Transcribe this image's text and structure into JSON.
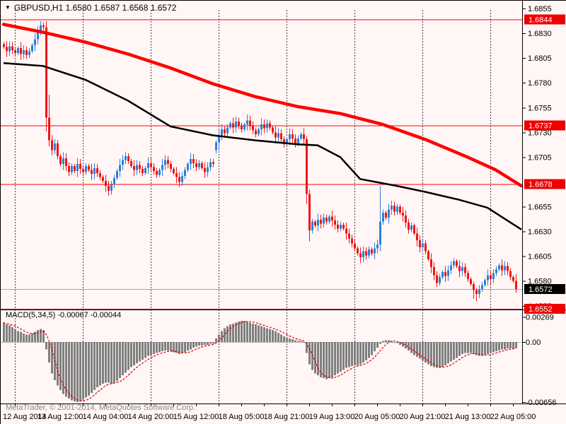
{
  "window": {
    "title": "GBPUSD,H1 1.6580 1.6587 1.6568 1.6572",
    "collapse_icon": "▼"
  },
  "footer": {
    "watermark": "MetaTrader, © 2001-2014, MetaQuotes Software Corp."
  },
  "chart_data": {
    "type": "candlestick",
    "symbol": "GBPUSD",
    "timeframe": "H1",
    "current_bar": {
      "open": "1.6580",
      "high": "1.6587",
      "low": "1.6568",
      "close": "1.6572"
    },
    "x_labels": [
      "12 Aug 2014",
      "13 Aug 12:00",
      "14 Aug 04:00",
      "14 Aug 20:00",
      "15 Aug 12:00",
      "18 Aug 05:00",
      "18 Aug 21:00",
      "19 Aug 13:00",
      "20 Aug 05:00",
      "20 Aug 21:00",
      "21 Aug 13:00",
      "22 Aug 05:00"
    ],
    "price_ticks": [
      "1.6855",
      "1.6830",
      "1.6805",
      "1.6780",
      "1.6755",
      "1.6730",
      "1.6705",
      "1.6655",
      "1.6630",
      "1.6605",
      "1.6580",
      "1.6555"
    ],
    "price_axis_range": {
      "top": 1.6858,
      "bottom": 1.6549
    },
    "grid": "vertical-dashed",
    "hlines": [
      {
        "price": 1.6844,
        "color": "#FF0000",
        "badge_bg": "#EE0000",
        "label": "1.6844"
      },
      {
        "price": 1.6737,
        "color": "#FF0000",
        "badge_bg": "#EE0000",
        "label": "1.6737"
      },
      {
        "price": 1.6678,
        "color": "#FF0000",
        "badge_bg": "#EE0000",
        "label": "1.6678"
      },
      {
        "price": 1.6572,
        "color": "#A8A8A8",
        "badge_bg": "#000000",
        "label": "1.6572"
      },
      {
        "price": 1.6552,
        "color": "#FF0000",
        "badge_bg": "#EE0000",
        "label": "1.6552"
      }
    ],
    "candles": {
      "default_wick": 0.0004,
      "closes": [
        1.6816,
        1.6812,
        1.6817,
        1.6813,
        1.681,
        1.6815,
        1.6809,
        1.6813,
        1.6808,
        1.6812,
        1.6818,
        1.6824,
        1.6832,
        1.6838,
        1.6836,
        1.6745,
        1.6722,
        1.6712,
        1.6719,
        1.6706,
        1.6698,
        1.6704,
        1.6696,
        1.669,
        1.6696,
        1.6691,
        1.6698,
        1.6693,
        1.669,
        1.6696,
        1.6692,
        1.6688,
        1.6694,
        1.6689,
        1.6685,
        1.6681,
        1.6676,
        1.6671,
        1.6677,
        1.6684,
        1.6691,
        1.6697,
        1.6702,
        1.6706,
        1.6701,
        1.6696,
        1.6692,
        1.6697,
        1.6693,
        1.6689,
        1.6694,
        1.6699,
        1.6695,
        1.6691,
        1.6687,
        1.6692,
        1.6697,
        1.6702,
        1.6698,
        1.6693,
        1.6689,
        1.6685,
        1.668,
        1.6686,
        1.6692,
        1.6698,
        1.6703,
        1.6699,
        1.6695,
        1.6699,
        1.6694,
        1.669,
        1.6695,
        1.67,
        1.6698,
        1.672,
        1.6727,
        1.6733,
        1.6729,
        1.6735,
        1.6739,
        1.6735,
        1.6741,
        1.6737,
        1.6733,
        1.6738,
        1.6742,
        1.6737,
        1.6732,
        1.6728,
        1.6733,
        1.6738,
        1.6734,
        1.6739,
        1.6735,
        1.673,
        1.6725,
        1.6729,
        1.6723,
        1.6718,
        1.6723,
        1.6728,
        1.6724,
        1.6719,
        1.6724,
        1.6728,
        1.6723,
        1.6668,
        1.6631,
        1.664,
        1.6636,
        1.6642,
        1.6638,
        1.6644,
        1.664,
        1.6645,
        1.6641,
        1.6637,
        1.6633,
        1.6637,
        1.6633,
        1.6628,
        1.6623,
        1.6618,
        1.6613,
        1.6608,
        1.6604,
        1.661,
        1.6606,
        1.6612,
        1.6608,
        1.6613,
        1.6617,
        1.664,
        1.6649,
        1.6644,
        1.6652,
        1.6656,
        1.665,
        1.6655,
        1.6649,
        1.6646,
        1.6639,
        1.6632,
        1.6636,
        1.6628,
        1.6621,
        1.6614,
        1.6618,
        1.661,
        1.6602,
        1.6594,
        1.6586,
        1.6578,
        1.6584,
        1.6589,
        1.6585,
        1.6591,
        1.6596,
        1.66,
        1.6595,
        1.659,
        1.6594,
        1.6588,
        1.6582,
        1.6577,
        1.6571,
        1.6567,
        1.6572,
        1.6576,
        1.6581,
        1.6586,
        1.6582,
        1.6588,
        1.6592,
        1.6596,
        1.6591,
        1.6595,
        1.659,
        1.6584,
        1.658,
        1.6572
      ],
      "specials": {
        "15": [
          1.6836,
          1.6842,
          1.6731,
          1.6745
        ],
        "16": [
          1.6745,
          1.6768,
          1.6716,
          1.6722
        ],
        "75": [
          1.6712,
          1.6722,
          1.6709,
          1.672
        ],
        "107": [
          1.6723,
          1.6726,
          1.6658,
          1.6668
        ],
        "108": [
          1.6668,
          1.6672,
          1.662,
          1.6631
        ],
        "133": [
          1.6617,
          1.6676,
          1.661,
          1.664
        ],
        "166": [
          1.6577,
          1.6579,
          1.6562,
          1.6571
        ],
        "167": [
          1.6571,
          1.6573,
          1.656,
          1.6567
        ],
        "181": [
          1.658,
          1.6587,
          1.6568,
          1.6572
        ]
      }
    },
    "ma_red": {
      "name": "thick-red-moving-average",
      "points": [
        [
          0,
          1.6839
        ],
        [
          14,
          1.6831
        ],
        [
          29,
          1.6821
        ],
        [
          44,
          1.6809
        ],
        [
          59,
          1.6795
        ],
        [
          74,
          1.6779
        ],
        [
          89,
          1.6766
        ],
        [
          104,
          1.6756
        ],
        [
          119,
          1.6749
        ],
        [
          134,
          1.6738
        ],
        [
          149,
          1.6723
        ],
        [
          164,
          1.6705
        ],
        [
          174,
          1.6692
        ],
        [
          183,
          1.6676
        ]
      ]
    },
    "ma_black": {
      "name": "black-moving-average",
      "points": [
        [
          0,
          1.68
        ],
        [
          14,
          1.6797
        ],
        [
          29,
          1.6783
        ],
        [
          44,
          1.6762
        ],
        [
          59,
          1.6736
        ],
        [
          74,
          1.6727
        ],
        [
          89,
          1.6722
        ],
        [
          104,
          1.6718
        ],
        [
          111,
          1.6717
        ],
        [
          119,
          1.6705
        ],
        [
          126,
          1.6683
        ],
        [
          139,
          1.6676
        ],
        [
          149,
          1.667
        ],
        [
          161,
          1.6662
        ],
        [
          171,
          1.6654
        ],
        [
          183,
          1.6632
        ]
      ]
    },
    "macd": {
      "label": "MACD(5,34,5) -0.00067 -0.00044",
      "params": "5,34,5",
      "value": "-0.00067",
      "signal_value": "-0.00044",
      "ticks": [
        {
          "v": 0.00269,
          "label": "0.00269"
        },
        {
          "v": 0,
          "label": "0.00"
        },
        {
          "v": -0.00656,
          "label": "-0.00656"
        }
      ],
      "range": {
        "max": 0.00269,
        "min": -0.00656
      },
      "values": [
        0.0021,
        0.0019,
        0.0018,
        0.0016,
        0.0014,
        0.0012,
        0.0011,
        0.0009,
        0.0008,
        0.0008,
        0.0009,
        0.0011,
        0.0013,
        0.0014,
        0.0013,
        -0.0008,
        -0.0022,
        -0.0034,
        -0.0041,
        -0.0047,
        -0.0052,
        -0.0056,
        -0.0059,
        -0.0061,
        -0.0063,
        -0.0064,
        -0.0065,
        -0.0064,
        -0.0062,
        -0.006,
        -0.0058,
        -0.0055,
        -0.0052,
        -0.0049,
        -0.0047,
        -0.0045,
        -0.0044,
        -0.0044,
        -0.0045,
        -0.0044,
        -0.0042,
        -0.0039,
        -0.0036,
        -0.0033,
        -0.003,
        -0.0027,
        -0.0025,
        -0.0023,
        -0.0021,
        -0.0019,
        -0.0017,
        -0.0015,
        -0.0014,
        -0.0013,
        -0.0012,
        -0.0011,
        -0.001,
        -0.0009,
        -0.0009,
        -0.001,
        -0.0011,
        -0.0012,
        -0.0013,
        -0.0012,
        -0.0011,
        -0.0009,
        -0.0008,
        -0.0006,
        -0.0005,
        -0.0004,
        -0.0004,
        -0.0003,
        -0.0003,
        -0.0002,
        -0.0002,
        0.0004,
        0.0008,
        0.0012,
        0.0015,
        0.0017,
        0.0019,
        0.002,
        0.0021,
        0.0022,
        0.0023,
        0.0023,
        0.0022,
        0.0021,
        0.002,
        0.0019,
        0.0018,
        0.0017,
        0.0016,
        0.0015,
        0.0014,
        0.0013,
        0.0012,
        0.001,
        0.0008,
        0.0006,
        0.0005,
        0.0004,
        0.0003,
        0.0002,
        0.0001,
        0.0001,
        0.0,
        -0.0012,
        -0.0024,
        -0.003,
        -0.0034,
        -0.0036,
        -0.0038,
        -0.0039,
        -0.004,
        -0.0039,
        -0.0038,
        -0.0036,
        -0.0034,
        -0.0032,
        -0.003,
        -0.0028,
        -0.0027,
        -0.0026,
        -0.0025,
        -0.0025,
        -0.0024,
        -0.0022,
        -0.002,
        -0.0017,
        -0.0014,
        -0.001,
        -0.0006,
        -0.0002,
        0.0001,
        0.0002,
        0.0002,
        0.0001,
        0.0,
        -0.0001,
        -0.0003,
        -0.0005,
        -0.0007,
        -0.0009,
        -0.0012,
        -0.0014,
        -0.0016,
        -0.0018,
        -0.002,
        -0.0022,
        -0.0024,
        -0.0026,
        -0.0027,
        -0.0028,
        -0.0028,
        -0.0027,
        -0.0025,
        -0.0023,
        -0.0021,
        -0.0019,
        -0.0017,
        -0.0015,
        -0.0013,
        -0.0012,
        -0.0012,
        -0.0012,
        -0.0013,
        -0.0014,
        -0.0015,
        -0.0015,
        -0.0014,
        -0.0013,
        -0.0012,
        -0.0011,
        -0.001,
        -0.0009,
        -0.0008,
        -0.0008,
        -0.0007,
        -0.0007,
        -0.0007,
        -0.00067
      ]
    },
    "colors": {
      "bull": "#2E7FD9",
      "bear": "#F11414",
      "line_red": "#FF0000",
      "ma_black": "#000000",
      "grid": "#444444",
      "hist": "#7F7F7F",
      "signal": "#E00000",
      "bg": "#FFF6F5",
      "badge_text": "#FFFFFF"
    }
  }
}
